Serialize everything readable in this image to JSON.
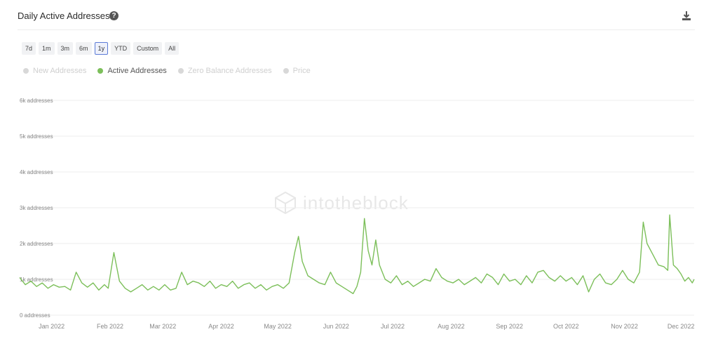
{
  "header": {
    "title": "Daily Active Addresses",
    "help_glyph": "?"
  },
  "ranges": [
    {
      "label": "7d",
      "active": false
    },
    {
      "label": "1m",
      "active": false
    },
    {
      "label": "3m",
      "active": false
    },
    {
      "label": "6m",
      "active": false
    },
    {
      "label": "1y",
      "active": true
    },
    {
      "label": "YTD",
      "active": false
    },
    {
      "label": "Custom",
      "active": false
    },
    {
      "label": "All",
      "active": false
    }
  ],
  "legend": [
    {
      "label": "New Addresses",
      "enabled": false
    },
    {
      "label": "Active Addresses",
      "enabled": true
    },
    {
      "label": "Zero Balance Addresses",
      "enabled": false
    },
    {
      "label": "Price",
      "enabled": false
    }
  ],
  "watermark": "intotheblock",
  "colors": {
    "series": "#7cbf5a",
    "grid": "#eeeeee",
    "axis_text": "#888888",
    "active_range": "#5b7bd6"
  },
  "chart_data": {
    "type": "line",
    "title": "Daily Active Addresses",
    "ylim": [
      0,
      6000
    ],
    "yticks": [
      0,
      1000,
      2000,
      3000,
      4000,
      5000,
      6000
    ],
    "ytick_labels": [
      "0 addresses",
      "1k addresses",
      "2k addresses",
      "3k addresses",
      "4k addresses",
      "5k addresses",
      "6k addresses"
    ],
    "xlim": [
      "2021-12-15",
      "2022-12-08"
    ],
    "xtick_labels": [
      {
        "label": "Jan 2022",
        "date": "2022-01-01"
      },
      {
        "label": "Feb 2022",
        "date": "2022-02-01"
      },
      {
        "label": "Mar 2022",
        "date": "2022-03-01"
      },
      {
        "label": "Apr 2022",
        "date": "2022-04-01"
      },
      {
        "label": "May 2022",
        "date": "2022-05-01"
      },
      {
        "label": "Jun 2022",
        "date": "2022-06-01"
      },
      {
        "label": "Jul 2022",
        "date": "2022-07-01"
      },
      {
        "label": "Aug 2022",
        "date": "2022-08-01"
      },
      {
        "label": "Sep 2022",
        "date": "2022-09-01"
      },
      {
        "label": "Oct 2022",
        "date": "2022-10-01"
      },
      {
        "label": "Nov 2022",
        "date": "2022-11-01"
      },
      {
        "label": "Dec 2022",
        "date": "2022-12-01"
      }
    ],
    "grid": true,
    "legend_position": "top-left",
    "series": [
      {
        "name": "Active Addresses",
        "color": "#7cbf5a",
        "points": [
          [
            "2021-12-15",
            1050
          ],
          [
            "2021-12-18",
            850
          ],
          [
            "2021-12-21",
            950
          ],
          [
            "2021-12-24",
            800
          ],
          [
            "2021-12-27",
            900
          ],
          [
            "2021-12-30",
            750
          ],
          [
            "2022-01-02",
            850
          ],
          [
            "2022-01-05",
            780
          ],
          [
            "2022-01-08",
            800
          ],
          [
            "2022-01-11",
            700
          ],
          [
            "2022-01-14",
            1200
          ],
          [
            "2022-01-17",
            900
          ],
          [
            "2022-01-20",
            780
          ],
          [
            "2022-01-23",
            900
          ],
          [
            "2022-01-26",
            700
          ],
          [
            "2022-01-29",
            850
          ],
          [
            "2022-01-31",
            750
          ],
          [
            "2022-02-03",
            1750
          ],
          [
            "2022-02-06",
            950
          ],
          [
            "2022-02-09",
            750
          ],
          [
            "2022-02-12",
            650
          ],
          [
            "2022-02-15",
            750
          ],
          [
            "2022-02-18",
            850
          ],
          [
            "2022-02-21",
            700
          ],
          [
            "2022-02-24",
            800
          ],
          [
            "2022-02-27",
            700
          ],
          [
            "2022-03-02",
            850
          ],
          [
            "2022-03-05",
            700
          ],
          [
            "2022-03-08",
            750
          ],
          [
            "2022-03-11",
            1200
          ],
          [
            "2022-03-14",
            850
          ],
          [
            "2022-03-17",
            950
          ],
          [
            "2022-03-20",
            900
          ],
          [
            "2022-03-23",
            800
          ],
          [
            "2022-03-26",
            950
          ],
          [
            "2022-03-29",
            750
          ],
          [
            "2022-04-01",
            850
          ],
          [
            "2022-04-04",
            800
          ],
          [
            "2022-04-07",
            950
          ],
          [
            "2022-04-10",
            750
          ],
          [
            "2022-04-13",
            850
          ],
          [
            "2022-04-16",
            900
          ],
          [
            "2022-04-19",
            750
          ],
          [
            "2022-04-22",
            850
          ],
          [
            "2022-04-25",
            700
          ],
          [
            "2022-04-28",
            800
          ],
          [
            "2022-05-01",
            850
          ],
          [
            "2022-05-04",
            750
          ],
          [
            "2022-05-07",
            900
          ],
          [
            "2022-05-10",
            1750
          ],
          [
            "2022-05-12",
            2200
          ],
          [
            "2022-05-14",
            1500
          ],
          [
            "2022-05-17",
            1100
          ],
          [
            "2022-05-20",
            1000
          ],
          [
            "2022-05-23",
            900
          ],
          [
            "2022-05-26",
            850
          ],
          [
            "2022-05-29",
            1200
          ],
          [
            "2022-06-01",
            900
          ],
          [
            "2022-06-04",
            800
          ],
          [
            "2022-06-07",
            700
          ],
          [
            "2022-06-10",
            600
          ],
          [
            "2022-06-12",
            800
          ],
          [
            "2022-06-14",
            1200
          ],
          [
            "2022-06-16",
            2700
          ],
          [
            "2022-06-18",
            1800
          ],
          [
            "2022-06-20",
            1400
          ],
          [
            "2022-06-22",
            2100
          ],
          [
            "2022-06-24",
            1400
          ],
          [
            "2022-06-27",
            1000
          ],
          [
            "2022-06-30",
            900
          ],
          [
            "2022-07-03",
            1100
          ],
          [
            "2022-07-06",
            850
          ],
          [
            "2022-07-09",
            950
          ],
          [
            "2022-07-12",
            800
          ],
          [
            "2022-07-15",
            900
          ],
          [
            "2022-07-18",
            1000
          ],
          [
            "2022-07-21",
            950
          ],
          [
            "2022-07-24",
            1300
          ],
          [
            "2022-07-27",
            1050
          ],
          [
            "2022-07-30",
            950
          ],
          [
            "2022-08-02",
            900
          ],
          [
            "2022-08-05",
            1000
          ],
          [
            "2022-08-08",
            850
          ],
          [
            "2022-08-11",
            950
          ],
          [
            "2022-08-14",
            1050
          ],
          [
            "2022-08-17",
            900
          ],
          [
            "2022-08-20",
            1150
          ],
          [
            "2022-08-23",
            1050
          ],
          [
            "2022-08-26",
            850
          ],
          [
            "2022-08-29",
            1150
          ],
          [
            "2022-09-01",
            950
          ],
          [
            "2022-09-04",
            1000
          ],
          [
            "2022-09-07",
            850
          ],
          [
            "2022-09-10",
            1100
          ],
          [
            "2022-09-13",
            900
          ],
          [
            "2022-09-16",
            1200
          ],
          [
            "2022-09-19",
            1250
          ],
          [
            "2022-09-22",
            1050
          ],
          [
            "2022-09-25",
            950
          ],
          [
            "2022-09-28",
            1100
          ],
          [
            "2022-10-01",
            950
          ],
          [
            "2022-10-04",
            1050
          ],
          [
            "2022-10-07",
            850
          ],
          [
            "2022-10-10",
            1100
          ],
          [
            "2022-10-13",
            650
          ],
          [
            "2022-10-16",
            1000
          ],
          [
            "2022-10-19",
            1150
          ],
          [
            "2022-10-22",
            900
          ],
          [
            "2022-10-25",
            850
          ],
          [
            "2022-10-28",
            1000
          ],
          [
            "2022-10-31",
            1250
          ],
          [
            "2022-11-03",
            1000
          ],
          [
            "2022-11-06",
            900
          ],
          [
            "2022-11-09",
            1200
          ],
          [
            "2022-11-11",
            2600
          ],
          [
            "2022-11-13",
            2000
          ],
          [
            "2022-11-16",
            1700
          ],
          [
            "2022-11-19",
            1400
          ],
          [
            "2022-11-22",
            1350
          ],
          [
            "2022-11-24",
            1250
          ],
          [
            "2022-11-25",
            2800
          ],
          [
            "2022-11-27",
            1400
          ],
          [
            "2022-11-29",
            1300
          ],
          [
            "2022-12-01",
            1150
          ],
          [
            "2022-12-03",
            950
          ],
          [
            "2022-12-05",
            1050
          ],
          [
            "2022-12-07",
            900
          ],
          [
            "2022-12-08",
            1000
          ]
        ]
      }
    ]
  }
}
